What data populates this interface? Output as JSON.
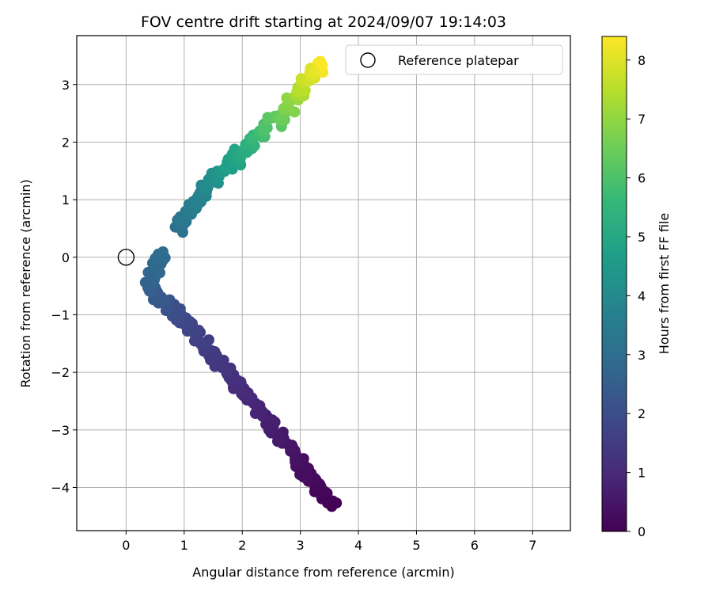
{
  "chart_data": {
    "type": "scatter",
    "title": "FOV centre drift starting at 2024/09/07 19:14:03",
    "xlabel": "Angular distance from reference (arcmin)",
    "ylabel": "Rotation from reference (arcmin)",
    "xlim": [
      -0.85,
      7.65
    ],
    "ylim": [
      -4.75,
      3.85
    ],
    "xticks": [
      0,
      1,
      2,
      3,
      4,
      5,
      6,
      7
    ],
    "yticks": [
      -4,
      -3,
      -2,
      -1,
      0,
      1,
      2,
      3
    ],
    "grid": true,
    "legend": {
      "position": "top-right",
      "label": "Reference platepar"
    },
    "reference_point": {
      "x": 0,
      "y": 0
    },
    "colorbar": {
      "label": "Hours from first FF file",
      "colormap": "viridis",
      "range": [
        0,
        8.4
      ],
      "ticks": [
        0,
        1,
        2,
        3,
        4,
        5,
        6,
        7,
        8
      ]
    },
    "segments": [
      {
        "from": [
          3.55,
          -4.32
        ],
        "to": [
          2.45,
          -2.85
        ],
        "t": [
          0.0,
          0.7
        ]
      },
      {
        "from": [
          2.45,
          -2.85
        ],
        "to": [
          1.0,
          -1.1
        ],
        "t": [
          0.7,
          1.8
        ]
      },
      {
        "from": [
          1.0,
          -1.1
        ],
        "to": [
          0.35,
          -0.5
        ],
        "t": [
          1.8,
          2.6
        ]
      },
      {
        "from": [
          0.35,
          -0.5
        ],
        "to": [
          0.65,
          0.1
        ],
        "t": [
          2.6,
          3.0
        ]
      },
      {
        "from": [
          0.85,
          0.45
        ],
        "to": [
          1.35,
          1.2
        ],
        "t": [
          3.1,
          3.9
        ]
      },
      {
        "from": [
          1.35,
          1.2
        ],
        "to": [
          2.05,
          1.9
        ],
        "t": [
          3.9,
          5.2
        ]
      },
      {
        "from": [
          2.05,
          1.9
        ],
        "to": [
          2.7,
          2.5
        ],
        "t": [
          5.2,
          6.5
        ]
      },
      {
        "from": [
          2.7,
          2.5
        ],
        "to": [
          3.35,
          3.4
        ],
        "t": [
          6.5,
          8.4
        ]
      }
    ],
    "n_points": 380
  },
  "colors": {
    "viridis": [
      "#440154",
      "#482878",
      "#3e4989",
      "#31688e",
      "#26828e",
      "#1f9e89",
      "#35b779",
      "#6ece58",
      "#b5de2b",
      "#fde725"
    ],
    "grid": "#b0b0b0"
  }
}
